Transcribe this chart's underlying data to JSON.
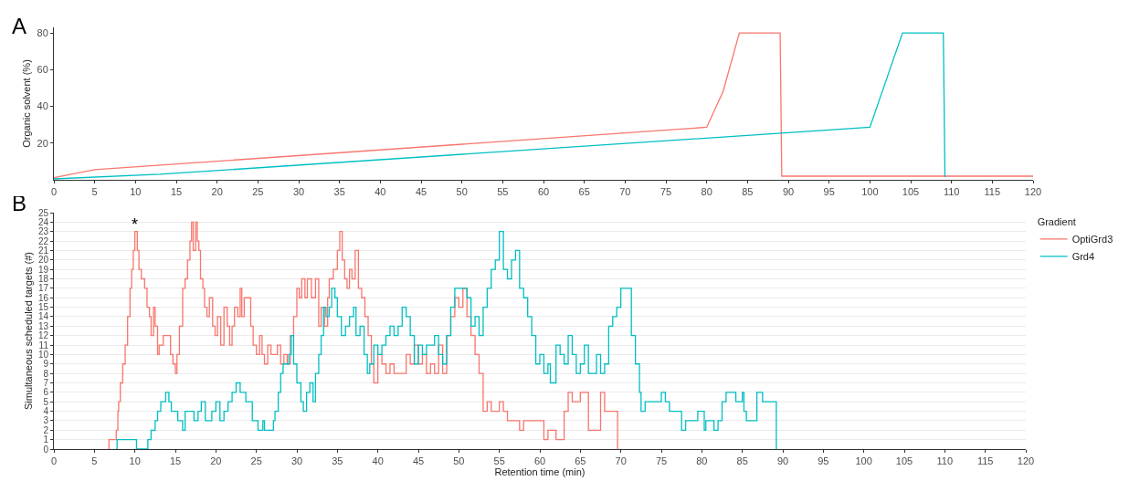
{
  "chart_data": [
    {
      "type": "line",
      "annotations": [
        "A"
      ],
      "ylabel": "Organic solvent (%)",
      "xlim": [
        0,
        120
      ],
      "xticks": [
        0,
        5,
        10,
        15,
        20,
        25,
        30,
        35,
        40,
        45,
        50,
        55,
        60,
        65,
        70,
        75,
        80,
        85,
        90,
        95,
        100,
        105,
        110,
        115,
        120
      ],
      "ylim": [
        0,
        83
      ],
      "yticks": [
        20,
        40,
        60,
        80
      ],
      "grid": false,
      "legend": false,
      "series": [
        {
          "color": "#f8766d",
          "x": [
            0,
            5,
            80,
            82,
            84,
            89,
            89.2,
            120
          ],
          "values": [
            1.2,
            5.5,
            28.6,
            48,
            80,
            80,
            2,
            2
          ]
        },
        {
          "color": "#00bfc4",
          "x": [
            0,
            13,
            100,
            104,
            109,
            109.2
          ],
          "values": [
            0.5,
            3,
            28.6,
            80,
            80,
            1.5
          ]
        }
      ]
    },
    {
      "type": "step",
      "annotations": [
        "B",
        {
          "text": "*",
          "x": 10,
          "y": 23
        }
      ],
      "xlabel": "Retention time (min)",
      "ylabel": "Simultaneous scheduled targets (#)",
      "legend_title": "Gradient",
      "legend": "top right",
      "grid": "y",
      "xlim": [
        0,
        120
      ],
      "xticks": [
        0,
        5,
        10,
        15,
        20,
        25,
        30,
        35,
        40,
        45,
        50,
        55,
        60,
        65,
        70,
        75,
        80,
        85,
        90,
        95,
        100,
        105,
        110,
        115,
        120
      ],
      "ylim": [
        0,
        25
      ],
      "yticks": [
        0,
        1,
        2,
        3,
        4,
        5,
        6,
        7,
        8,
        9,
        10,
        11,
        12,
        13,
        14,
        15,
        16,
        17,
        18,
        19,
        20,
        21,
        22,
        23,
        24,
        25
      ],
      "series": [
        {
          "name": "OptiGrd3",
          "color": "#f8766d",
          "x": [
            6.7,
            6.8,
            7.7,
            7.9,
            8,
            8.2,
            8.5,
            8.8,
            9.1,
            9.4,
            9.6,
            9.8,
            10,
            10.3,
            10.5,
            10.8,
            11.2,
            11.5,
            11.8,
            12,
            12.3,
            12.5,
            12.8,
            13,
            13.5,
            14.4,
            14.7,
            15,
            15.2,
            15.5,
            15.9,
            16.2,
            16.5,
            16.8,
            17,
            17.2,
            17.5,
            17.7,
            17.9,
            18.1,
            18.4,
            18.6,
            18.9,
            19.2,
            19.6,
            19.9,
            20.2,
            20.6,
            21,
            21.4,
            21.7,
            22,
            22.3,
            22.7,
            23,
            23.2,
            23.5,
            24.3,
            24.6,
            25,
            25.4,
            25.7,
            26,
            26.4,
            26.8,
            27.6,
            28,
            28.4,
            28.8,
            29.2,
            29.6,
            30,
            30.3,
            30.6,
            31,
            31.3,
            31.8,
            32.3,
            32.7,
            33,
            33.4,
            33.8,
            34,
            34.5,
            35,
            35.3,
            35.6,
            35.9,
            36.2,
            36.5,
            36.8,
            37.2,
            37.6,
            38,
            38.4,
            38.8,
            39.2,
            39.5,
            40,
            40.5,
            41,
            41.5,
            42,
            43.5,
            44,
            44.5,
            45,
            45.5,
            46,
            46.5,
            47,
            47.5,
            48,
            48.5,
            49,
            49.5,
            50,
            50.5,
            51,
            51.5,
            52,
            52.5,
            53,
            53.5,
            54,
            55,
            55.5,
            56,
            57.5,
            58,
            60.5,
            61,
            62,
            63,
            63.5,
            64,
            65,
            66,
            67.5,
            68,
            69.6
          ],
          "values": [
            0,
            1,
            2,
            4,
            5,
            7,
            9,
            11,
            14,
            17,
            19,
            21,
            23,
            21,
            19,
            18,
            17,
            15,
            14,
            12,
            15,
            13,
            10,
            11,
            12,
            10,
            9,
            8,
            10,
            13,
            17,
            18,
            20,
            22,
            24,
            21,
            24,
            22,
            21,
            18,
            17,
            15,
            14,
            16,
            13,
            12,
            14,
            11,
            15,
            13,
            11,
            13,
            15,
            14,
            17,
            14,
            16,
            13,
            11,
            10,
            12,
            10,
            9,
            11,
            10,
            11,
            9,
            10,
            9,
            12,
            14,
            17,
            16,
            18,
            16,
            18,
            16,
            18,
            13,
            15,
            13,
            16,
            18,
            19,
            21,
            23,
            20,
            18,
            17,
            19,
            18,
            21,
            17,
            16,
            14,
            12,
            9,
            7,
            10,
            9,
            8,
            9,
            8,
            10,
            9,
            11,
            9,
            10,
            8,
            9,
            8,
            11,
            8,
            12,
            14,
            16,
            15,
            17,
            14,
            12,
            10,
            8,
            4,
            5,
            4,
            5,
            4,
            3,
            2,
            3,
            1,
            2,
            1,
            4,
            6,
            5,
            6,
            2,
            6,
            4,
            0
          ]
        },
        {
          "name": "Grd4",
          "color": "#00bfc4",
          "x": [
            7.7,
            7.8,
            10.2,
            11.6,
            12,
            12.5,
            12.8,
            13.2,
            13.8,
            14.2,
            14.5,
            15.3,
            15.9,
            16.2,
            17.3,
            17.8,
            18.2,
            18.7,
            19.5,
            20,
            20.5,
            21,
            21.5,
            22,
            22.5,
            23,
            23.7,
            24.5,
            25.2,
            25.8,
            26,
            27.1,
            27.3,
            27.7,
            28,
            28.3,
            29,
            29.3,
            29.6,
            30,
            30.5,
            30.8,
            31.2,
            31.6,
            32,
            32.3,
            32.7,
            33,
            33.3,
            33.6,
            34,
            34.3,
            34.7,
            35,
            35.5,
            36,
            36.5,
            37,
            37.3,
            37.8,
            38.3,
            38.7,
            39,
            39.5,
            40,
            40.5,
            41,
            41.5,
            42,
            42.5,
            43,
            43.5,
            44,
            44.5,
            45,
            45.5,
            46,
            47,
            47.5,
            48,
            48.5,
            49,
            49.5,
            50.5,
            51,
            51.5,
            52,
            52.5,
            53,
            53.5,
            54,
            54.5,
            55,
            55.5,
            56,
            56.5,
            57,
            57.5,
            58,
            58.5,
            59,
            59.5,
            60,
            60.5,
            61,
            61.3,
            62,
            62.5,
            63,
            63.5,
            64,
            64.5,
            65,
            65.5,
            66,
            67,
            67.5,
            68,
            68.5,
            69,
            69.5,
            70,
            71,
            71.3,
            71.8,
            72.3,
            72.5,
            73,
            75,
            75.5,
            76,
            77.5,
            78,
            79.5,
            80.3,
            80.5,
            81.5,
            82,
            82.5,
            83,
            84.2,
            85,
            85.2,
            85.5,
            86.8,
            87.5,
            89.2
          ],
          "values": [
            0,
            1,
            0,
            1,
            2,
            3,
            4,
            5,
            6,
            5,
            4,
            3,
            2,
            4,
            3,
            4,
            5,
            3,
            4,
            5,
            3,
            4,
            5,
            6,
            7,
            6,
            5,
            3,
            2,
            3,
            2,
            3,
            4,
            6,
            8,
            9,
            10,
            12,
            9,
            7,
            5,
            4,
            6,
            7,
            5,
            8,
            10,
            12,
            15,
            14,
            15,
            17,
            16,
            14,
            12,
            13,
            14,
            15,
            12,
            13,
            10,
            8,
            9,
            11,
            10,
            11,
            12,
            13,
            12,
            13,
            15,
            14,
            12,
            9,
            11,
            10,
            11,
            12,
            10,
            9,
            12,
            15,
            17,
            17,
            16,
            13,
            14,
            12,
            15,
            17,
            19,
            20,
            23,
            19,
            18,
            20,
            21,
            17,
            16,
            14,
            12,
            9,
            10,
            8,
            9,
            7,
            11,
            10,
            9,
            12,
            10,
            8,
            9,
            11,
            8,
            10,
            8,
            9,
            13,
            14,
            15,
            17,
            17,
            12,
            9,
            6,
            4,
            5,
            6,
            5,
            4,
            2,
            3,
            4,
            2,
            3,
            2,
            3,
            5,
            6,
            5,
            6,
            4,
            3,
            6,
            5,
            0
          ]
        }
      ]
    }
  ]
}
